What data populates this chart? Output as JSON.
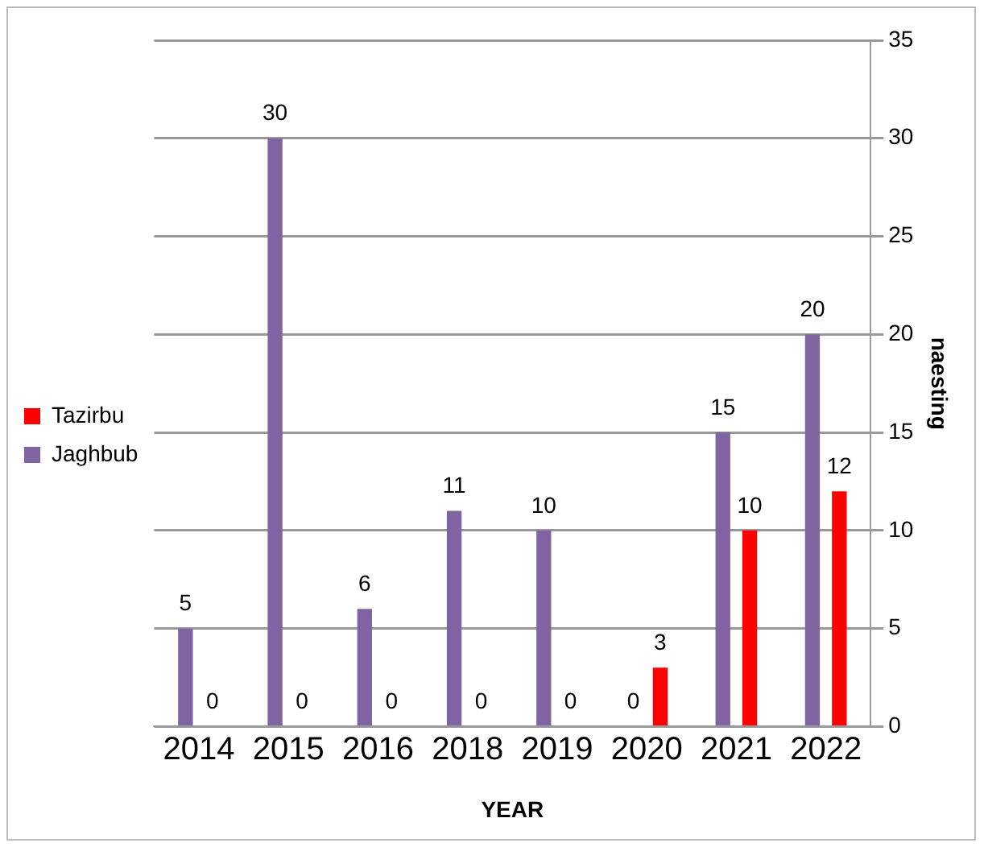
{
  "chart_data": {
    "type": "bar",
    "xlabel": "YEAR",
    "ylabel": "naesting",
    "categories": [
      "2014",
      "2015",
      "2016",
      "2018",
      "2019",
      "2020",
      "2021",
      "2022"
    ],
    "series": [
      {
        "name": "Jaghbub",
        "color": "#8064a2",
        "values": [
          5,
          30,
          6,
          11,
          10,
          0,
          15,
          20
        ]
      },
      {
        "name": "Tazirbu",
        "color": "#ff0000",
        "values": [
          0,
          0,
          0,
          0,
          0,
          3,
          10,
          12
        ]
      }
    ],
    "ylim": [
      0,
      35
    ],
    "yticks": [
      0,
      5,
      10,
      15,
      20,
      25,
      30,
      35
    ],
    "grid": "y",
    "legend": "left",
    "data_labels": true
  }
}
